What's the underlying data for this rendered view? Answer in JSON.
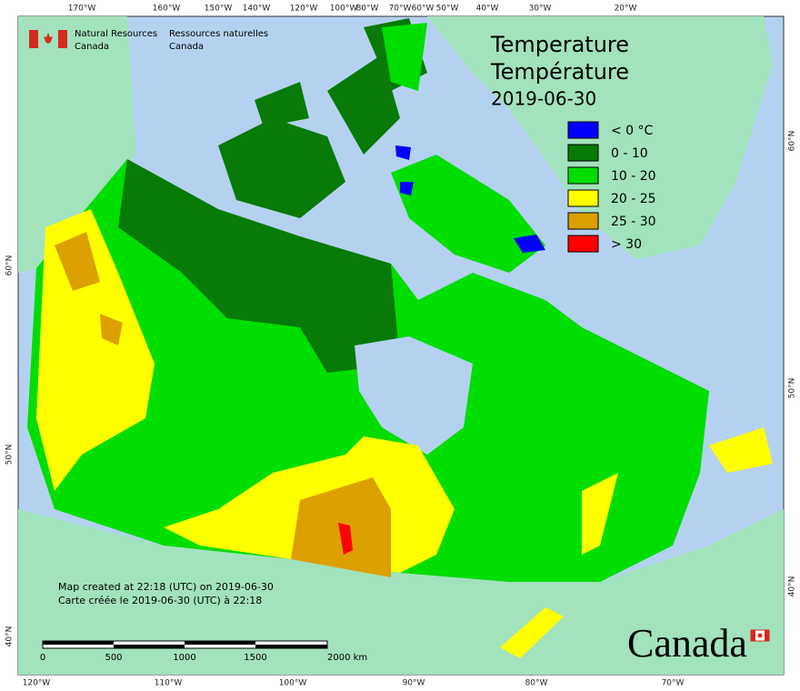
{
  "agency": {
    "en_line1": "Natural Resources",
    "en_line2": "Canada",
    "fr_line1": "Ressources naturelles",
    "fr_line2": "Canada"
  },
  "title": {
    "line1": "Temperature",
    "line2": "Température",
    "date": "2019-06-30"
  },
  "legend": [
    {
      "label": "< 0 °C",
      "color": "#0000ff"
    },
    {
      "label": "0 - 10",
      "color": "#087a08"
    },
    {
      "label": "10 - 20",
      "color": "#00dd00"
    },
    {
      "label": "20 - 25",
      "color": "#ffff00"
    },
    {
      "label": "25 - 30",
      "color": "#dca000"
    },
    {
      "label": "> 30",
      "color": "#ff0000"
    }
  ],
  "credits": {
    "en": "Map created at 22:18 (UTC) on 2019-06-30",
    "fr": "Carte créée le 2019-06-30 (UTC) à 22:18"
  },
  "scale_bar": [
    "0",
    "500",
    "1000",
    "1500",
    "2000 km"
  ],
  "graticule": {
    "top": [
      "170°W",
      "160°W",
      "150°W",
      "140°W",
      "120°W",
      "100°W",
      "80°W",
      "70°W",
      "60°W",
      "50°W",
      "40°W",
      "30°W",
      "20°W"
    ],
    "bottom": [
      "120°W",
      "110°W",
      "100°W",
      "90°W",
      "80°W",
      "70°W"
    ],
    "left": [
      "60°N",
      "50°N",
      "40°N"
    ],
    "right": [
      "60°N",
      "50°N",
      "40°N"
    ]
  },
  "wordmark": "Canada"
}
